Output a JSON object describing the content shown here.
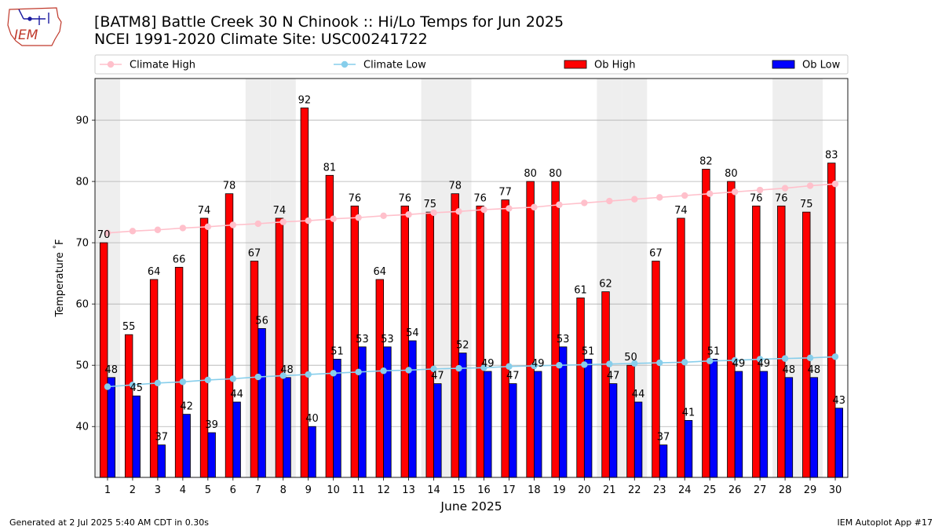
{
  "title_line1": "[BATM8] Battle Creek 30 N Chinook :: Hi/Lo Temps for Jun 2025",
  "title_line2": "NCEI 1991-2020 Climate Site: USC00241722",
  "logo_text": "IEM",
  "footer_left": "Generated at 2 Jul 2025 5:40 AM CDT in 0.30s",
  "footer_right": "IEM Autoplot App #17",
  "colors": {
    "ob_high": "#ff0000",
    "ob_low": "#0000ff",
    "climate_high": "#ffc0cb",
    "climate_low": "#87ceeb",
    "weekend_band": "#eeeeee",
    "grid": "#b0b0b0"
  },
  "chart_data": {
    "type": "bar",
    "xlabel": "June 2025",
    "ylabel": "Temperature $^\\circ$F",
    "ylim": [
      31.7,
      96.8
    ],
    "yticks": [
      40,
      50,
      60,
      70,
      80,
      90
    ],
    "grid": "horizontal",
    "legend_position": "top",
    "categories": [
      "1",
      "2",
      "3",
      "4",
      "5",
      "6",
      "7",
      "8",
      "9",
      "10",
      "11",
      "12",
      "13",
      "14",
      "15",
      "16",
      "17",
      "18",
      "19",
      "20",
      "21",
      "22",
      "23",
      "24",
      "25",
      "26",
      "27",
      "28",
      "29",
      "30"
    ],
    "weekend_days": [
      1,
      7,
      8,
      14,
      15,
      21,
      22,
      28,
      29
    ],
    "series": [
      {
        "name": "Ob High",
        "kind": "bar",
        "values": [
          70,
          55,
          64,
          66,
          74,
          78,
          67,
          74,
          92,
          81,
          76,
          64,
          76,
          75,
          78,
          76,
          77,
          80,
          80,
          61,
          62,
          50,
          67,
          74,
          82,
          80,
          76,
          76,
          75,
          83
        ]
      },
      {
        "name": "Ob Low",
        "kind": "bar",
        "values": [
          48,
          45,
          37,
          42,
          39,
          44,
          56,
          48,
          40,
          51,
          53,
          53,
          54,
          47,
          52,
          49,
          47,
          49,
          53,
          51,
          47,
          44,
          37,
          41,
          51,
          49,
          49,
          48,
          48,
          43
        ]
      },
      {
        "name": "Climate High",
        "kind": "line",
        "values": [
          71.6,
          71.9,
          72.1,
          72.4,
          72.6,
          72.9,
          73.1,
          73.4,
          73.6,
          73.9,
          74.1,
          74.4,
          74.6,
          74.9,
          75.1,
          75.4,
          75.6,
          75.8,
          76.2,
          76.5,
          76.8,
          77.1,
          77.4,
          77.7,
          78.0,
          78.3,
          78.6,
          78.9,
          79.3,
          79.6
        ]
      },
      {
        "name": "Climate Low",
        "kind": "line",
        "values": [
          46.5,
          46.8,
          47.1,
          47.3,
          47.6,
          47.8,
          48.1,
          48.3,
          48.5,
          48.7,
          48.9,
          49.1,
          49.2,
          49.4,
          49.5,
          49.6,
          49.8,
          49.9,
          50.0,
          50.1,
          50.2,
          50.3,
          50.4,
          50.5,
          50.7,
          50.8,
          51.0,
          51.1,
          51.2,
          51.4
        ]
      }
    ]
  }
}
